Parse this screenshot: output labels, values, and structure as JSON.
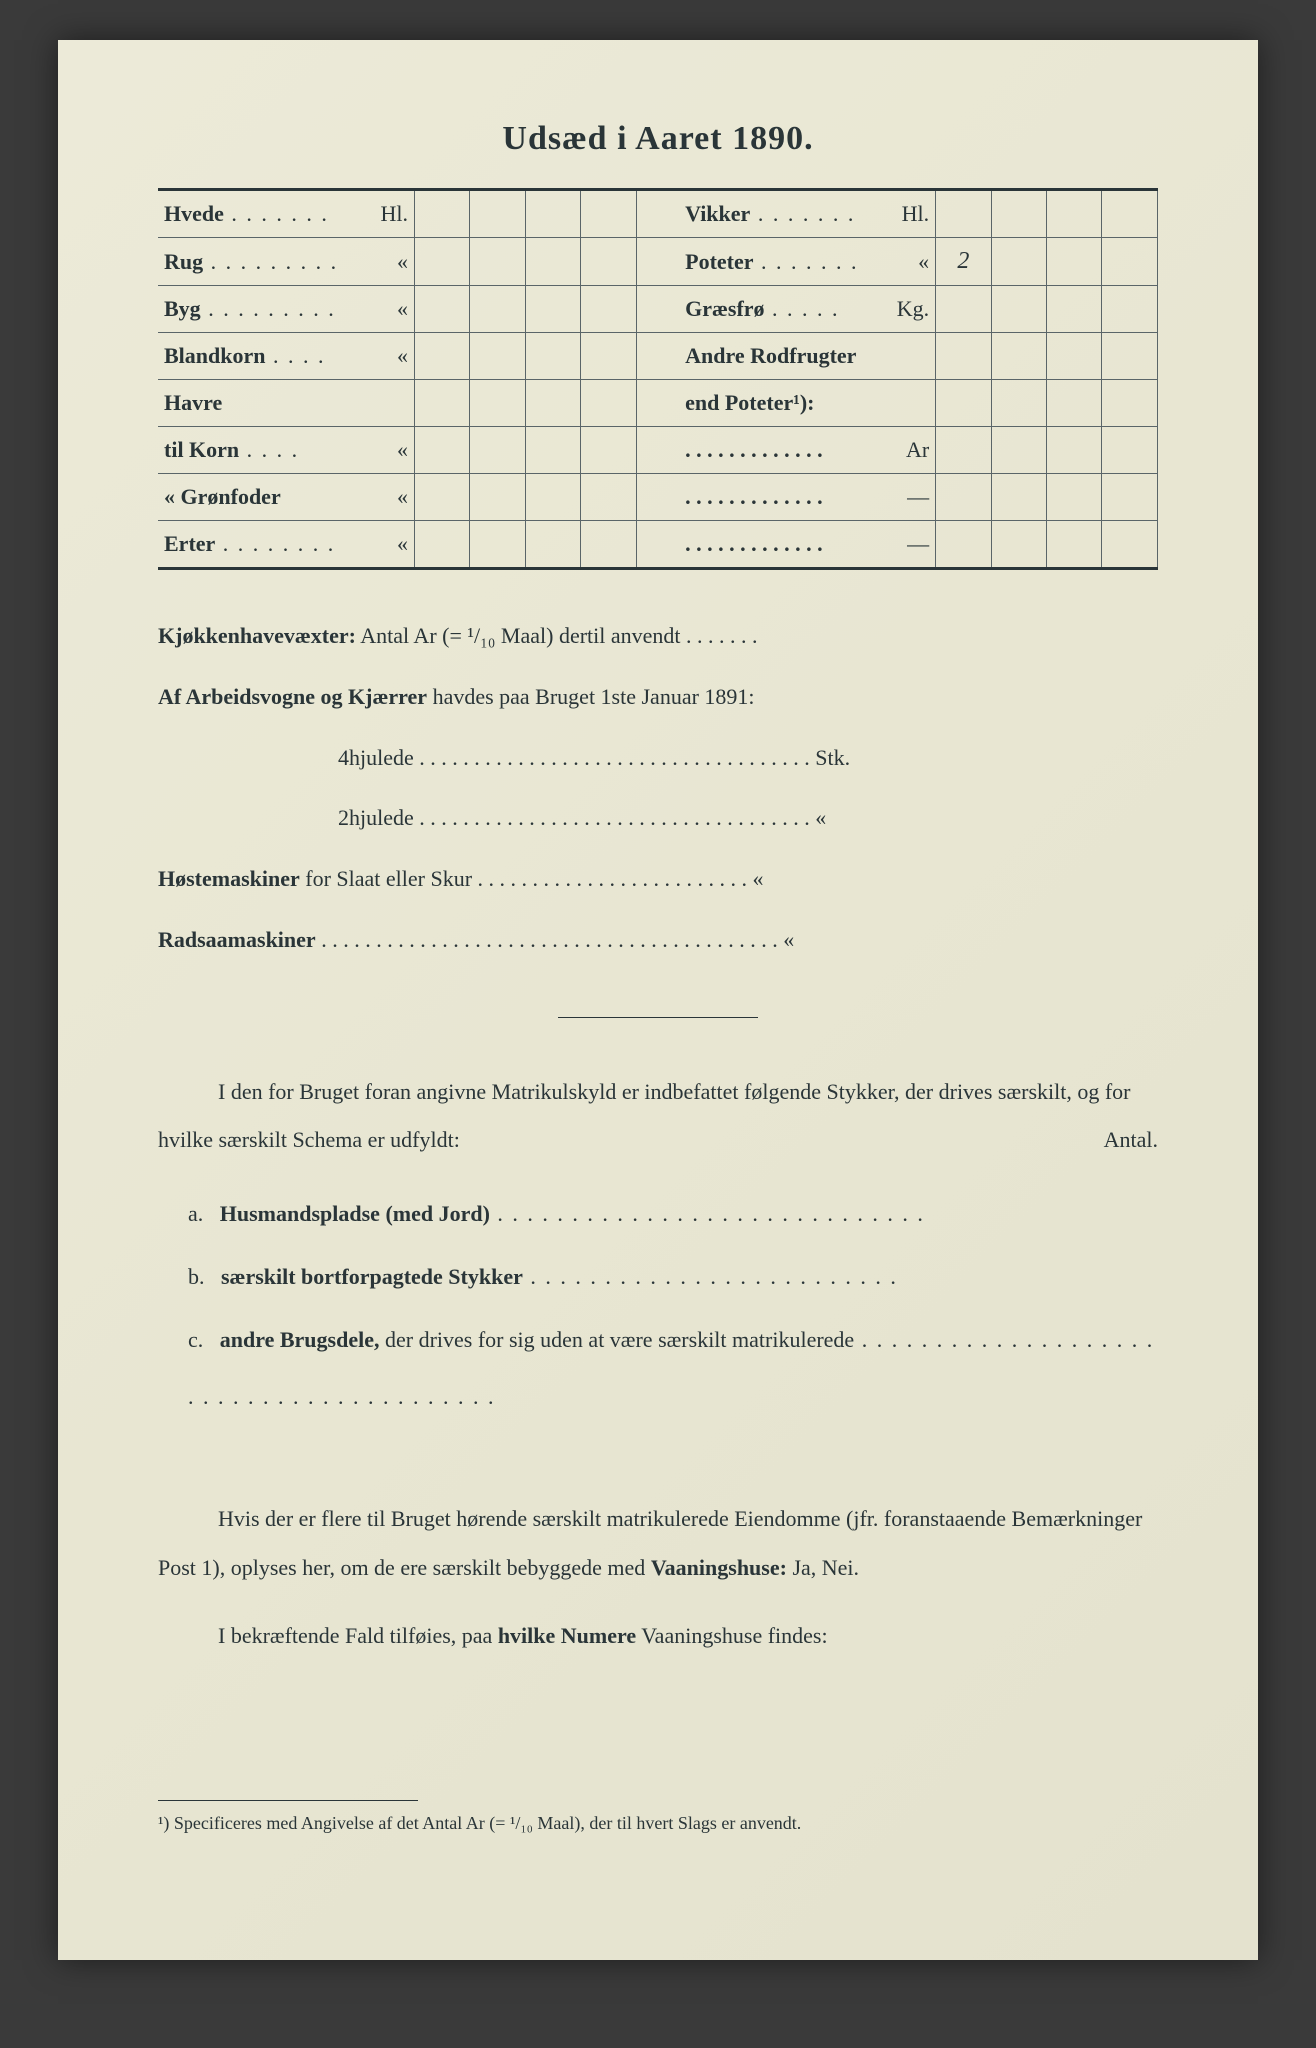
{
  "title": "Udsæd i Aaret 1890.",
  "seed_left": [
    {
      "label": "Hvede",
      "dots": " . . . . . . .",
      "unit": "Hl.",
      "vals": [
        "",
        "",
        "",
        ""
      ]
    },
    {
      "label": "Rug",
      "dots": " . . . . . . . . .",
      "unit": "«",
      "vals": [
        "",
        "",
        "",
        ""
      ]
    },
    {
      "label": "Byg",
      "dots": " . . . . . . . . .",
      "unit": "«",
      "vals": [
        "",
        "",
        "",
        ""
      ]
    },
    {
      "label": "Blandkorn",
      "dots": " . . . .",
      "unit": "«",
      "vals": [
        "",
        "",
        "",
        ""
      ]
    },
    {
      "label": "Havre",
      "dots": "",
      "unit": "",
      "vals": [
        "",
        "",
        "",
        ""
      ]
    },
    {
      "label": "   til Korn",
      "dots": " . . . .",
      "unit": "«",
      "vals": [
        "",
        "",
        "",
        ""
      ]
    },
    {
      "label": "   «  Grønfoder",
      "dots": "",
      "unit": "«",
      "vals": [
        "",
        "",
        "",
        ""
      ]
    },
    {
      "label": "Erter",
      "dots": " . . . . . . . .",
      "unit": "«",
      "vals": [
        "",
        "",
        "",
        ""
      ]
    }
  ],
  "seed_right": [
    {
      "label": "Vikker",
      "dots": " . . . . . . .",
      "unit": "Hl.",
      "vals": [
        "",
        "",
        "",
        ""
      ]
    },
    {
      "label": "Poteter",
      "dots": " . . . . . . .",
      "unit": "«",
      "vals": [
        "2",
        "",
        "",
        ""
      ]
    },
    {
      "label": "Græsfrø",
      "dots": " . . . . .",
      "unit": "Kg.",
      "vals": [
        "",
        "",
        "",
        ""
      ]
    },
    {
      "label": "Andre Rodfrugter",
      "dots": "",
      "unit": "",
      "vals": [
        "",
        "",
        "",
        ""
      ]
    },
    {
      "label": "     end Poteter¹):",
      "dots": "",
      "unit": "",
      "vals": [
        "",
        "",
        "",
        ""
      ]
    },
    {
      "label": " . . . . . . . . . . . . .",
      "dots": "",
      "unit": "Ar",
      "vals": [
        "",
        "",
        "",
        ""
      ]
    },
    {
      "label": " . . . . . . . . . . . . .",
      "dots": "",
      "unit": "—",
      "vals": [
        "",
        "",
        "",
        ""
      ]
    },
    {
      "label": " . . . . . . . . . . . . .",
      "dots": "",
      "unit": "—",
      "vals": [
        "",
        "",
        "",
        ""
      ]
    }
  ],
  "mid": {
    "kjokken_label": "Kjøkkenhavevæxter:",
    "kjokken_text": " Antal Ar (= ¹/₁₀ Maal) dertil anvendt . . . . . . .",
    "vogne_label": "Af Arbeidsvogne og Kjærrer",
    "vogne_text": " havdes paa Bruget 1ste Januar 1891:",
    "hjul4": "4hjulede . . . . . . . . . . . . . . . . . . . . . . . . . . . . . . . . . . . . Stk.",
    "hjul2": "2hjulede . . . . . . . . . . . . . . . . . . . . . . . . . . . . . . . . . . . .   «",
    "hoste_label": "Høstemaskiner",
    "hoste_text": " for Slaat eller Skur . . . . . . . . . . . . . . . . . . . . . . . . .   «",
    "rad_label": "Radsaamaskiner",
    "rad_text": " . . . . . . . . . . . . . . . . . . . . . . . . . . . . . . . . . . . . . . . . . .   «"
  },
  "para1_a": "I den for Bruget foran angivne Matrikulskyld er indbefattet følgende Stykker, der drives særskilt, og for hvilke særskilt Schema er udfyldt:",
  "antal_label": "Antal.",
  "items": {
    "a_letter": "a.",
    "a_bold": "Husmandspladse (med Jord)",
    "a_dots": " . . . . . . . . . . . . . . . . . . . . . . . . . . . . .",
    "b_letter": "b.",
    "b_bold": "særskilt bortforpagtede Stykker",
    "b_dots": " . . . . . . . . . . . . . . . . . . . . . . . . .",
    "c_letter": "c.",
    "c_bold": "andre Brugsdele,",
    "c_text": " der drives for sig uden at være særskilt matrikulerede",
    "c_dots": " . . . . . . . . . . . . . . . . . . . . . . . . . . . . . . . . . . . . . . . . ."
  },
  "para2": "Hvis der er flere til Bruget hørende særskilt matrikulerede Eiendomme (jfr. foranstaaende Bemærkninger Post 1), oplyses her, om de ere særskilt bebyggede med ",
  "para2_bold": "Vaaningshuse:",
  "para2_end": " Ja, Nei.",
  "para3_a": "I bekræftende Fald tilføies, paa ",
  "para3_bold": "hvilke Numere",
  "para3_b": " Vaaningshuse findes:",
  "footnote": "¹) Specificeres med Angivelse af det Antal Ar (= ¹/₁₀ Maal), der til hvert Slags er anvendt."
}
